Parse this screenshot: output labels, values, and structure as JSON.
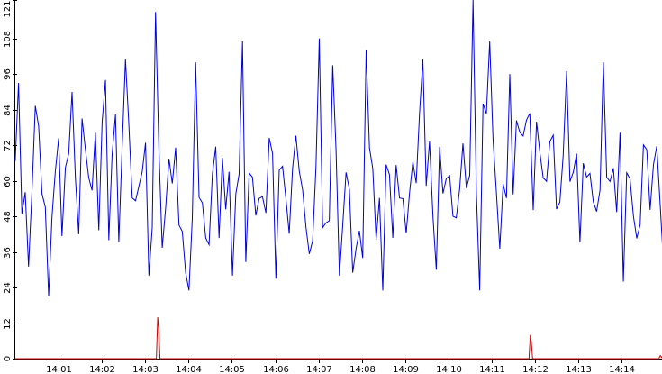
{
  "chart_data": {
    "type": "line",
    "title": "",
    "xlabel": "",
    "ylabel": "",
    "ylim": [
      0,
      121
    ],
    "y_ticks": [
      "0",
      "12",
      "24",
      "36",
      "48",
      "60",
      "72",
      "84",
      "96",
      "108",
      "121"
    ],
    "x_tick_labels": [
      "14:01",
      "14:02",
      "14:03",
      "14:04",
      "14:05",
      "14:06",
      "14:07",
      "14:08",
      "14:09",
      "14:10",
      "14:11",
      "14:12",
      "14:13",
      "14:14"
    ],
    "x_range_minutes": [
      14.0,
      14.95
    ],
    "grid": false,
    "legend": "none",
    "series": [
      {
        "color": "#0000dd",
        "sample_count": 740,
        "baseline": 58,
        "spread": 13,
        "min": 21,
        "max": 121,
        "peaks": [
          {
            "time": "14:00.10",
            "value": 93
          },
          {
            "time": "14:00.75",
            "value": 99
          },
          {
            "time": "14:01.30",
            "value": 90
          },
          {
            "time": "14:02.05",
            "value": 94
          },
          {
            "time": "14:02.55",
            "value": 101
          },
          {
            "time": "14:03.25",
            "value": 117
          },
          {
            "time": "14:04.15",
            "value": 100
          },
          {
            "time": "14:05.25",
            "value": 107
          },
          {
            "time": "14:06.05",
            "value": 90
          },
          {
            "time": "14:07.00",
            "value": 108
          },
          {
            "time": "14:07.30",
            "value": 99
          },
          {
            "time": "14:08.10",
            "value": 104
          },
          {
            "time": "14:09.40",
            "value": 101
          },
          {
            "time": "14:10.55",
            "value": 121
          },
          {
            "time": "14:10.98",
            "value": 107
          },
          {
            "time": "14:11.40",
            "value": 96
          },
          {
            "time": "14:12.75",
            "value": 97
          },
          {
            "time": "14:13.60",
            "value": 100
          }
        ],
        "troughs": [
          {
            "time": "14:00.80",
            "value": 21
          },
          {
            "time": "14:03.05",
            "value": 28
          },
          {
            "time": "14:04.00",
            "value": 23
          },
          {
            "time": "14:05.05",
            "value": 28
          },
          {
            "time": "14:06.00",
            "value": 27
          },
          {
            "time": "14:07.50",
            "value": 28
          },
          {
            "time": "14:08.45",
            "value": 23
          },
          {
            "time": "14:09.70",
            "value": 30
          },
          {
            "time": "14:10.75",
            "value": 23
          },
          {
            "time": "14:14.00",
            "value": 26
          }
        ]
      },
      {
        "color": "#cc0000",
        "baseline": 0,
        "spikes": [
          {
            "time": "14:03.30",
            "value": 14
          },
          {
            "time": "14:11.90",
            "value": 8
          },
          {
            "time": "14:14.90",
            "value": 1
          }
        ]
      }
    ]
  }
}
